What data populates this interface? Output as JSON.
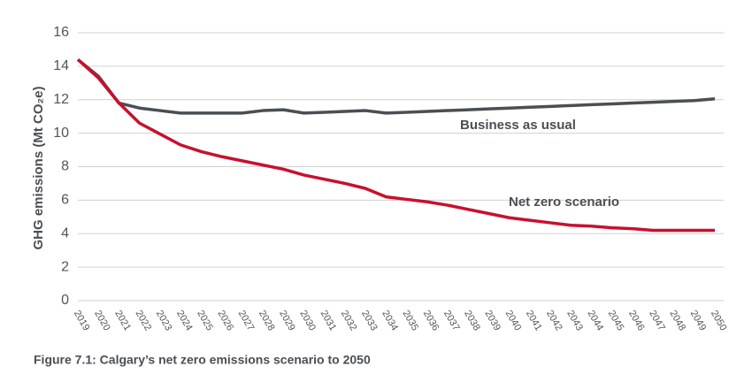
{
  "chart_data": {
    "type": "line",
    "caption": "Figure 7.1: Calgary’s net zero emissions scenario to 2050",
    "y_label": "GHG emissions (Mt CO₂e)",
    "categories": [
      "2019",
      "2020",
      "2021",
      "2022",
      "2023",
      "2024",
      "2025",
      "2026",
      "2027",
      "2028",
      "2029",
      "2030",
      "2031",
      "2032",
      "2033",
      "2034",
      "2035",
      "2036",
      "2037",
      "2038",
      "2039",
      "2040",
      "2041",
      "2042",
      "2043",
      "2044",
      "2045",
      "2046",
      "2047",
      "2048",
      "2049",
      "2050"
    ],
    "series": [
      {
        "name": "Business as usual",
        "color": "#4a4f54",
        "values": [
          14.4,
          13.4,
          11.8,
          11.5,
          11.35,
          11.2,
          11.2,
          11.2,
          11.2,
          11.35,
          11.4,
          11.2,
          11.25,
          11.3,
          11.35,
          11.2,
          11.25,
          11.3,
          11.35,
          11.4,
          11.45,
          11.5,
          11.55,
          11.6,
          11.65,
          11.7,
          11.75,
          11.8,
          11.85,
          11.9,
          11.95,
          12.05
        ]
      },
      {
        "name": "Net zero scenario",
        "color": "#c8102e",
        "values": [
          14.4,
          13.3,
          11.8,
          10.6,
          9.95,
          9.3,
          8.9,
          8.6,
          8.35,
          8.1,
          7.85,
          7.5,
          7.25,
          7.0,
          6.7,
          6.2,
          6.05,
          5.9,
          5.7,
          5.45,
          5.2,
          4.95,
          4.8,
          4.65,
          4.5,
          4.45,
          4.35,
          4.3,
          4.2,
          4.2,
          4.2,
          4.2
        ]
      }
    ],
    "ylim": [
      0,
      16
    ],
    "yticks": [
      0,
      2,
      4,
      6,
      8,
      10,
      12,
      14,
      16
    ],
    "grid": true
  }
}
